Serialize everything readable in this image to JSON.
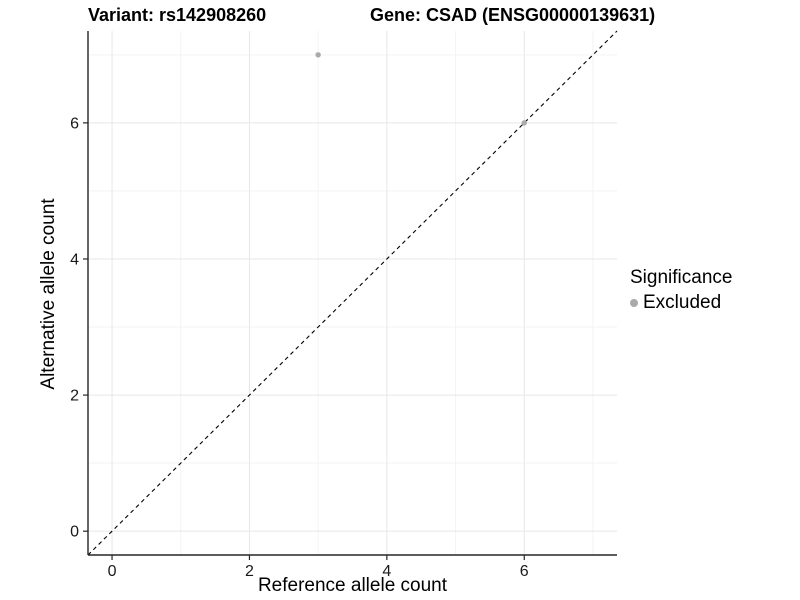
{
  "titles": {
    "variant": "Variant: rs142908260",
    "gene": "Gene: CSAD (ENSG00000139631)"
  },
  "legend": {
    "title": "Significance",
    "items": [
      {
        "label": "Excluded",
        "color": "#aaaaaa",
        "marker": "circle"
      }
    ]
  },
  "chart_data": {
    "type": "scatter",
    "title_left": "Variant: rs142908260",
    "title_right": "Gene: CSAD (ENSG00000139631)",
    "xlabel": "Reference allele count",
    "ylabel": "Alternative allele count",
    "xlim": [
      -0.35,
      7.35
    ],
    "ylim": [
      -0.35,
      7.35
    ],
    "x_major_ticks": [
      0,
      2,
      4,
      6
    ],
    "y_major_ticks": [
      0,
      2,
      4,
      6
    ],
    "x_minor_gridlines": [
      1,
      3,
      5,
      7
    ],
    "y_minor_gridlines": [
      1,
      3,
      5,
      7
    ],
    "grid": true,
    "legend_position": "right",
    "series": [
      {
        "name": "Excluded",
        "color": "#aaaaaa",
        "marker": "circle",
        "points": [
          {
            "x": 3,
            "y": 7
          },
          {
            "x": 6,
            "y": 6
          }
        ]
      }
    ],
    "reference_line": {
      "kind": "identity_y_equals_x",
      "style": "dashed",
      "color": "#000000"
    },
    "colors": {
      "grid_major": "#e7e7e7",
      "grid_minor": "#f3f3f3",
      "axis_line": "#262626",
      "tick_text": "#1a1a1a"
    }
  }
}
